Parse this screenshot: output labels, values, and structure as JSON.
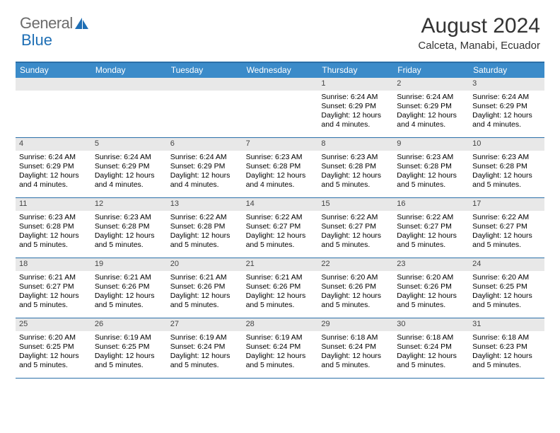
{
  "logo": {
    "text1": "General",
    "text2": "Blue"
  },
  "title": "August 2024",
  "location": "Calceta, Manabi, Ecuador",
  "colors": {
    "header_bg": "#3b8bc9",
    "border": "#2b6fa8",
    "daynum_bg": "#e8e8e8",
    "logo_gray": "#6b6b6b",
    "logo_blue": "#1f6fb5"
  },
  "weekdays": [
    "Sunday",
    "Monday",
    "Tuesday",
    "Wednesday",
    "Thursday",
    "Friday",
    "Saturday"
  ],
  "weeks": [
    [
      null,
      null,
      null,
      null,
      {
        "n": "1",
        "sr": "6:24 AM",
        "ss": "6:29 PM",
        "dl": "12 hours and 4 minutes."
      },
      {
        "n": "2",
        "sr": "6:24 AM",
        "ss": "6:29 PM",
        "dl": "12 hours and 4 minutes."
      },
      {
        "n": "3",
        "sr": "6:24 AM",
        "ss": "6:29 PM",
        "dl": "12 hours and 4 minutes."
      }
    ],
    [
      {
        "n": "4",
        "sr": "6:24 AM",
        "ss": "6:29 PM",
        "dl": "12 hours and 4 minutes."
      },
      {
        "n": "5",
        "sr": "6:24 AM",
        "ss": "6:29 PM",
        "dl": "12 hours and 4 minutes."
      },
      {
        "n": "6",
        "sr": "6:24 AM",
        "ss": "6:29 PM",
        "dl": "12 hours and 4 minutes."
      },
      {
        "n": "7",
        "sr": "6:23 AM",
        "ss": "6:28 PM",
        "dl": "12 hours and 4 minutes."
      },
      {
        "n": "8",
        "sr": "6:23 AM",
        "ss": "6:28 PM",
        "dl": "12 hours and 5 minutes."
      },
      {
        "n": "9",
        "sr": "6:23 AM",
        "ss": "6:28 PM",
        "dl": "12 hours and 5 minutes."
      },
      {
        "n": "10",
        "sr": "6:23 AM",
        "ss": "6:28 PM",
        "dl": "12 hours and 5 minutes."
      }
    ],
    [
      {
        "n": "11",
        "sr": "6:23 AM",
        "ss": "6:28 PM",
        "dl": "12 hours and 5 minutes."
      },
      {
        "n": "12",
        "sr": "6:23 AM",
        "ss": "6:28 PM",
        "dl": "12 hours and 5 minutes."
      },
      {
        "n": "13",
        "sr": "6:22 AM",
        "ss": "6:28 PM",
        "dl": "12 hours and 5 minutes."
      },
      {
        "n": "14",
        "sr": "6:22 AM",
        "ss": "6:27 PM",
        "dl": "12 hours and 5 minutes."
      },
      {
        "n": "15",
        "sr": "6:22 AM",
        "ss": "6:27 PM",
        "dl": "12 hours and 5 minutes."
      },
      {
        "n": "16",
        "sr": "6:22 AM",
        "ss": "6:27 PM",
        "dl": "12 hours and 5 minutes."
      },
      {
        "n": "17",
        "sr": "6:22 AM",
        "ss": "6:27 PM",
        "dl": "12 hours and 5 minutes."
      }
    ],
    [
      {
        "n": "18",
        "sr": "6:21 AM",
        "ss": "6:27 PM",
        "dl": "12 hours and 5 minutes."
      },
      {
        "n": "19",
        "sr": "6:21 AM",
        "ss": "6:26 PM",
        "dl": "12 hours and 5 minutes."
      },
      {
        "n": "20",
        "sr": "6:21 AM",
        "ss": "6:26 PM",
        "dl": "12 hours and 5 minutes."
      },
      {
        "n": "21",
        "sr": "6:21 AM",
        "ss": "6:26 PM",
        "dl": "12 hours and 5 minutes."
      },
      {
        "n": "22",
        "sr": "6:20 AM",
        "ss": "6:26 PM",
        "dl": "12 hours and 5 minutes."
      },
      {
        "n": "23",
        "sr": "6:20 AM",
        "ss": "6:26 PM",
        "dl": "12 hours and 5 minutes."
      },
      {
        "n": "24",
        "sr": "6:20 AM",
        "ss": "6:25 PM",
        "dl": "12 hours and 5 minutes."
      }
    ],
    [
      {
        "n": "25",
        "sr": "6:20 AM",
        "ss": "6:25 PM",
        "dl": "12 hours and 5 minutes."
      },
      {
        "n": "26",
        "sr": "6:19 AM",
        "ss": "6:25 PM",
        "dl": "12 hours and 5 minutes."
      },
      {
        "n": "27",
        "sr": "6:19 AM",
        "ss": "6:24 PM",
        "dl": "12 hours and 5 minutes."
      },
      {
        "n": "28",
        "sr": "6:19 AM",
        "ss": "6:24 PM",
        "dl": "12 hours and 5 minutes."
      },
      {
        "n": "29",
        "sr": "6:18 AM",
        "ss": "6:24 PM",
        "dl": "12 hours and 5 minutes."
      },
      {
        "n": "30",
        "sr": "6:18 AM",
        "ss": "6:24 PM",
        "dl": "12 hours and 5 minutes."
      },
      {
        "n": "31",
        "sr": "6:18 AM",
        "ss": "6:23 PM",
        "dl": "12 hours and 5 minutes."
      }
    ]
  ],
  "labels": {
    "sunrise": "Sunrise: ",
    "sunset": "Sunset: ",
    "daylight": "Daylight: "
  }
}
